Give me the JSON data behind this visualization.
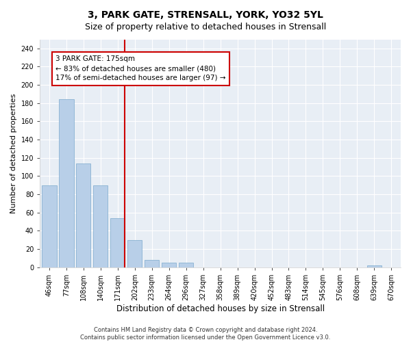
{
  "title": "3, PARK GATE, STRENSALL, YORK, YO32 5YL",
  "subtitle": "Size of property relative to detached houses in Strensall",
  "xlabel": "Distribution of detached houses by size in Strensall",
  "ylabel": "Number of detached properties",
  "categories": [
    "46sqm",
    "77sqm",
    "108sqm",
    "140sqm",
    "171sqm",
    "202sqm",
    "233sqm",
    "264sqm",
    "296sqm",
    "327sqm",
    "358sqm",
    "389sqm",
    "420sqm",
    "452sqm",
    "483sqm",
    "514sqm",
    "545sqm",
    "576sqm",
    "608sqm",
    "639sqm",
    "670sqm"
  ],
  "values": [
    90,
    184,
    114,
    90,
    54,
    30,
    8,
    5,
    5,
    0,
    0,
    0,
    0,
    0,
    0,
    0,
    0,
    0,
    0,
    2,
    0
  ],
  "bar_color": "#b8cfe8",
  "bar_edge_color": "#7aa8cc",
  "vline_index": 4,
  "annotation_text": "3 PARK GATE: 175sqm\n← 83% of detached houses are smaller (480)\n17% of semi-detached houses are larger (97) →",
  "annotation_box_facecolor": "#ffffff",
  "annotation_box_edgecolor": "#cc0000",
  "vline_color": "#cc0000",
  "ylim": [
    0,
    250
  ],
  "yticks": [
    0,
    20,
    40,
    60,
    80,
    100,
    120,
    140,
    160,
    180,
    200,
    220,
    240
  ],
  "footnote": "Contains HM Land Registry data © Crown copyright and database right 2024.\nContains public sector information licensed under the Open Government Licence v3.0.",
  "fig_facecolor": "#ffffff",
  "axes_facecolor": "#e8eef5",
  "grid_color": "#ffffff",
  "title_fontsize": 10,
  "subtitle_fontsize": 9,
  "tick_fontsize": 7,
  "ylabel_fontsize": 8,
  "xlabel_fontsize": 8.5,
  "footnote_fontsize": 6,
  "annotation_fontsize": 7.5
}
